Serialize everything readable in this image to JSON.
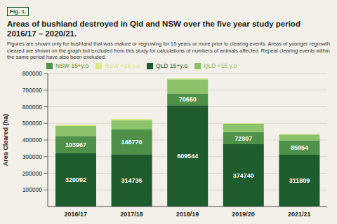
{
  "chart_data": {
    "type": "bar",
    "figure": "Fig. 1.",
    "title": "Areas of bushland destroyed in Qld and NSW over the five year study period 2016/17 – 2020/21.",
    "subtitle": "Figures are shown only for bushland that was mature or regrowing for 15 years or more prior to clearing events. Areas of younger regrowth cleared are shown on the graph but excluded from this study for calculations of numbers of animals affected. Repeat clearing events within the same period have also been excluded.",
    "y_label": "Area Cleared (ha)",
    "categories": [
      "2016/17",
      "2017/18",
      "2018/19",
      "2019/20",
      "2021/21"
    ],
    "series": [
      {
        "name": "QLD 15+y.o",
        "color": "#1e5b2d",
        "values": [
          320092,
          314736,
          609544,
          374740,
          311809
        ],
        "data_labels": true
      },
      {
        "name": "NSW 15+y.o",
        "color": "#4f9148",
        "values": [
          103967,
          148770,
          70660,
          72807,
          85954
        ],
        "data_labels": true
      },
      {
        "name": "QLD <15 y.o",
        "color": "#8cc36a",
        "values": [
          60000,
          55000,
          85000,
          50000,
          35000
        ]
      },
      {
        "name": "NSW <15 y.o",
        "color": "#d6e88a",
        "values": [
          8000,
          8000,
          5000,
          4000,
          3000
        ]
      }
    ],
    "stacked": true,
    "legend": "top",
    "grid": true,
    "ylim": [
      0,
      800000
    ],
    "yticks": [
      100000,
      200000,
      300000,
      400000,
      500000,
      600000,
      700000,
      800000
    ]
  }
}
